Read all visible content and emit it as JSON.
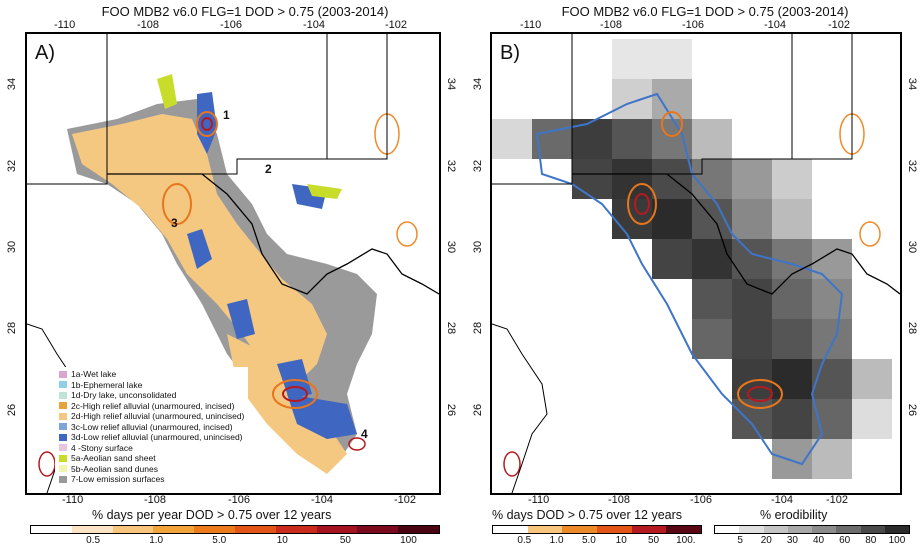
{
  "panel_a": {
    "title": "FOO MDB2 v6.0 FLG=1 DOD > 0.75 (2003-2014)",
    "label": "A)",
    "site_labels": [
      "1",
      "2",
      "3",
      "4"
    ],
    "legend": [
      {
        "label": "1a-Wet lake",
        "color": "#d9a6cf"
      },
      {
        "label": "1b-Ephemeral lake",
        "color": "#8fd0e6"
      },
      {
        "label": "1d-Dry lake, unconsolidated",
        "color": "#bfe3d4"
      },
      {
        "label": "2c-High relief alluvial (unarmoured, incised)",
        "color": "#e8a23a"
      },
      {
        "label": "2d-High relief alluvial (unarmoured, unincised)",
        "color": "#f5c882"
      },
      {
        "label": "3c-Low relief alluvial (unarmoured, incised)",
        "color": "#7fa4d8"
      },
      {
        "label": "3d-Low relief alluvial (unarmoured, unincised)",
        "color": "#3f66c0"
      },
      {
        "label": "4 -Stony surface",
        "color": "#e7c4e0"
      },
      {
        "label": "5a-Aeolian sand sheet",
        "color": "#c8dd2a"
      },
      {
        "label": "5b-Aeolian sand dunes",
        "color": "#f0f6b0"
      },
      {
        "label": "7-Low emission surfaces",
        "color": "#999999"
      }
    ],
    "colorbar": {
      "title": "% days per year DOD > 0.75 over 12 years",
      "ticks": [
        "0.5",
        "1.0",
        "5.0",
        "10",
        "50",
        "100"
      ],
      "colors": [
        "#ffffff",
        "#fbe3c4",
        "#f7c57c",
        "#f2a33a",
        "#ec7b1c",
        "#e25516",
        "#c92b1c",
        "#a51320",
        "#7a0a1c",
        "#4b0512"
      ]
    }
  },
  "panel_b": {
    "title": "FOO MDB2 v6.0 FLG=1 DOD > 0.75 (2003-2014)",
    "label": "B)",
    "colorbar_dod": {
      "title": "% days DOD > 0.75 over 12 years",
      "ticks": [
        "0.5",
        "1.0",
        "5.0",
        "10",
        "50",
        "100."
      ],
      "colors": [
        "#ffffff",
        "#f7c57c",
        "#ec8a2a",
        "#e25516",
        "#b51a20",
        "#5a0715"
      ]
    },
    "colorbar_erod": {
      "title": "% erodibility",
      "ticks": [
        "5",
        "20",
        "30",
        "40",
        "60",
        "80",
        "100"
      ],
      "colors": [
        "#ffffff",
        "#e0e0e0",
        "#c4c4c4",
        "#a8a8a8",
        "#8c8c8c",
        "#6c6c6c",
        "#4a4a4a",
        "#2b2b2b"
      ]
    }
  },
  "axes": {
    "lon_ticks": [
      "-110",
      "-108",
      "-106",
      "-104",
      "-102"
    ],
    "lat_ticks": [
      "34",
      "32",
      "30",
      "28",
      "26"
    ]
  }
}
